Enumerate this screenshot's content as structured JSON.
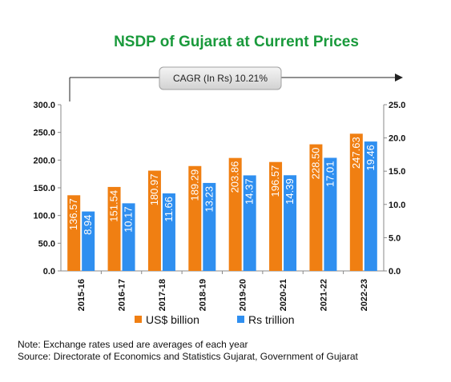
{
  "chart_data": {
    "type": "bar",
    "title": "NSDP of Gujarat at Current Prices",
    "categories": [
      "2015-16",
      "2016-17",
      "2017-18",
      "2018-19",
      "2019-20",
      "2020-21",
      "2021-22",
      "2022-23"
    ],
    "series": [
      {
        "name": "US$ billion",
        "axis": "left",
        "color": "#f07f12",
        "values": [
          136.57,
          151.54,
          180.97,
          189.29,
          203.86,
          196.57,
          228.5,
          247.63
        ],
        "labels": [
          "136.57",
          "151.54",
          "180.97",
          "189.29",
          "203.86",
          "196.57",
          "228.50",
          "247.63"
        ]
      },
      {
        "name": "Rs trillion",
        "axis": "right",
        "color": "#2f8ff0",
        "values": [
          8.94,
          10.17,
          11.66,
          13.23,
          14.37,
          14.39,
          17.01,
          19.46
        ],
        "labels": [
          "8.94",
          "10.17",
          "11.66",
          "13.23",
          "14.37",
          "14.39",
          "17.01",
          "19.46"
        ]
      }
    ],
    "y_left": {
      "lim": [
        0,
        300
      ],
      "ticks": [
        "0.0",
        "50.0",
        "100.0",
        "150.0",
        "200.0",
        "250.0",
        "300.0"
      ]
    },
    "y_right": {
      "lim": [
        0,
        25
      ],
      "ticks": [
        "0.0",
        "5.0",
        "10.0",
        "15.0",
        "20.0",
        "25.0"
      ]
    },
    "annotation": "CAGR (In Rs) 10.21%",
    "legend_position": "bottom",
    "grid": false,
    "notes": {
      "note": "Note: Exchange rates used are averages of each year",
      "source": "Source: Directorate of Economics and Statistics Gujarat, Government of Gujarat"
    },
    "colors": {
      "title": "#1a9a3c"
    }
  }
}
